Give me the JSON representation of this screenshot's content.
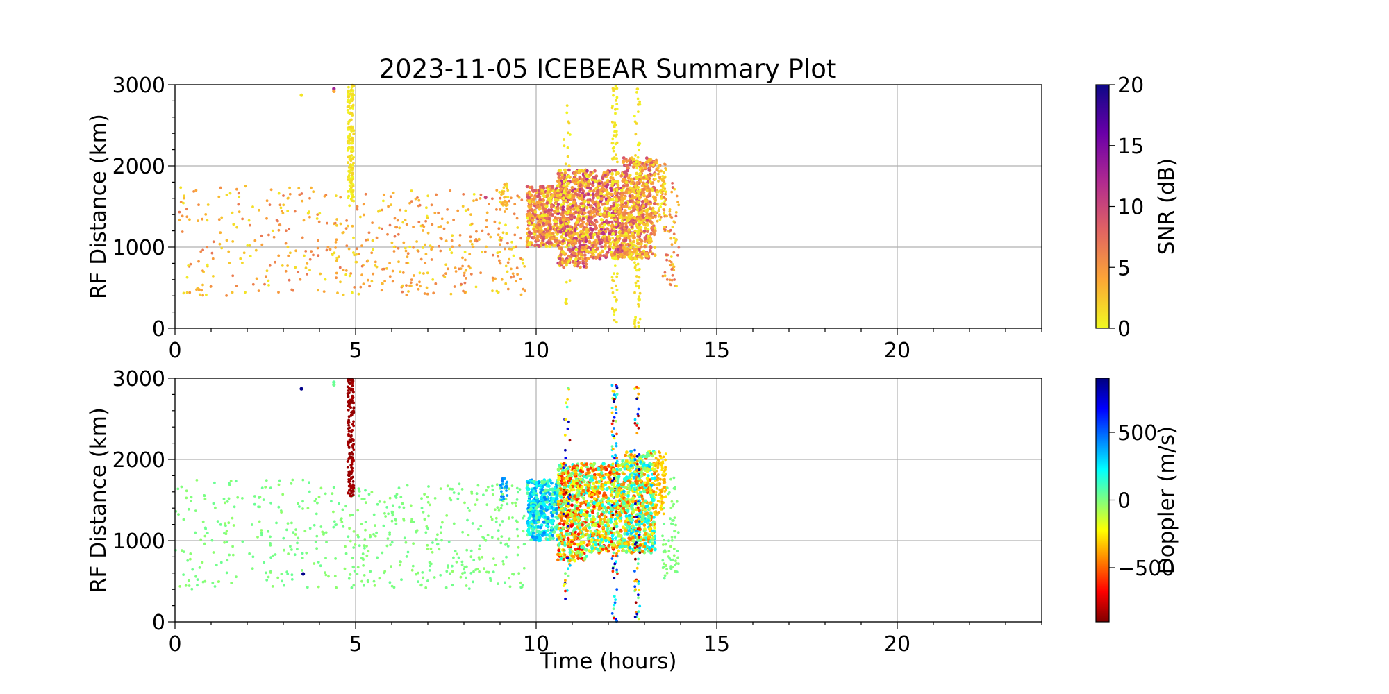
{
  "chart_data": [
    {
      "type": "scatter",
      "title": "2023-11-05 ICEBEAR Summary Plot",
      "xlabel": "",
      "ylabel": "RF Distance (km)",
      "xlim": [
        0,
        24
      ],
      "ylim": [
        0,
        3000
      ],
      "xticks": [
        "0",
        "5",
        "10",
        "15",
        "20"
      ],
      "yticks": [
        "0",
        "1000",
        "2000",
        "3000"
      ],
      "grid": true,
      "color_variable": "SNR",
      "colorbar": {
        "label": "SNR (dB)",
        "range": [
          0,
          20
        ],
        "ticks": [
          "0",
          "5",
          "10",
          "15",
          "20"
        ],
        "colormap": "plasma_r",
        "stops": [
          "#f0f921",
          "#fca636",
          "#e16462",
          "#b12a90",
          "#6a00a8",
          "#0d0887"
        ]
      },
      "clusters": [
        {
          "x": [
            0,
            4.7
          ],
          "y": [
            400,
            1750
          ],
          "count": 210,
          "value": [
            0.5,
            7
          ],
          "size": 3
        },
        {
          "x": [
            4.7,
            9.7
          ],
          "y": [
            400,
            1700
          ],
          "count": 330,
          "value": [
            0.5,
            7
          ],
          "size": 3
        },
        {
          "x": [
            9.0,
            9.2
          ],
          "y": [
            1500,
            1800
          ],
          "count": 25,
          "value": [
            0.5,
            4
          ],
          "size": 3
        },
        {
          "x": [
            4.78,
            4.95
          ],
          "y": [
            1550,
            3000
          ],
          "count": 170,
          "value": [
            0,
            2
          ],
          "size": 3
        },
        {
          "x": [
            9.75,
            10.6
          ],
          "y": [
            1000,
            1750
          ],
          "count": 380,
          "value": [
            0,
            10
          ],
          "size": 4
        },
        {
          "x": [
            10.6,
            11.4
          ],
          "y": [
            750,
            1950
          ],
          "count": 520,
          "value": [
            0,
            12
          ],
          "size": 4
        },
        {
          "x": [
            11.4,
            12.4
          ],
          "y": [
            850,
            1950
          ],
          "count": 520,
          "value": [
            0,
            12
          ],
          "size": 4
        },
        {
          "x": [
            12.4,
            13.3
          ],
          "y": [
            850,
            2100
          ],
          "count": 560,
          "value": [
            0,
            10
          ],
          "size": 4
        },
        {
          "x": [
            13.3,
            13.6
          ],
          "y": [
            1300,
            2100
          ],
          "count": 90,
          "value": [
            0,
            6
          ],
          "size": 3
        },
        {
          "x": [
            13.5,
            13.95
          ],
          "y": [
            500,
            1850
          ],
          "count": 70,
          "value": [
            1,
            8
          ],
          "size": 3
        },
        {
          "x": [
            10.75,
            10.95
          ],
          "y": [
            280,
            2900
          ],
          "count": 50,
          "value": [
            0,
            2
          ],
          "size": 3
        },
        {
          "x": [
            12.1,
            12.25
          ],
          "y": [
            0,
            3000
          ],
          "count": 90,
          "value": [
            0,
            2
          ],
          "size": 3
        },
        {
          "x": [
            12.72,
            12.88
          ],
          "y": [
            0,
            2950
          ],
          "count": 90,
          "value": [
            0,
            2
          ],
          "size": 3
        }
      ],
      "points": [
        {
          "x": 4.4,
          "y": 2950,
          "value": 13
        },
        {
          "x": 4.4,
          "y": 2920,
          "value": 4
        },
        {
          "x": 3.5,
          "y": 2870,
          "value": 1
        },
        {
          "x": 8.6,
          "y": 1610,
          "value": 10
        }
      ]
    },
    {
      "type": "scatter",
      "title": "",
      "xlabel": "Time (hours)",
      "ylabel": "RF Distance (km)",
      "xlim": [
        0,
        24
      ],
      "ylim": [
        0,
        3000
      ],
      "xticks": [
        "0",
        "5",
        "10",
        "15",
        "20"
      ],
      "yticks": [
        "0",
        "1000",
        "2000",
        "3000"
      ],
      "grid": true,
      "color_variable": "Doppler",
      "colorbar": {
        "label": "Doppler (m/s)",
        "range": [
          -900,
          900
        ],
        "ticks": [
          {
            "value": -500,
            "label": "−500"
          },
          {
            "value": 0,
            "label": "0"
          },
          {
            "value": 500,
            "label": "500"
          }
        ],
        "colormap": "jet_r",
        "stops": [
          "#7f0000",
          "#ff0000",
          "#ff7f00",
          "#ffff00",
          "#7fff7f",
          "#00ffff",
          "#007fff",
          "#0000ff",
          "#00007f"
        ]
      },
      "clusters": [
        {
          "x": [
            0,
            4.7
          ],
          "y": [
            400,
            1750
          ],
          "count": 210,
          "value": [
            -40,
            40
          ],
          "size": 3
        },
        {
          "x": [
            4.7,
            9.7
          ],
          "y": [
            400,
            1700
          ],
          "count": 330,
          "value": [
            -40,
            40
          ],
          "size": 3
        },
        {
          "x": [
            9.0,
            9.2
          ],
          "y": [
            1500,
            1800
          ],
          "count": 25,
          "value": [
            350,
            450
          ],
          "size": 3
        },
        {
          "x": [
            4.78,
            4.95
          ],
          "y": [
            1550,
            3000
          ],
          "count": 170,
          "value": [
            -880,
            -820
          ],
          "size": 3
        },
        {
          "x": [
            9.75,
            10.6
          ],
          "y": [
            1000,
            1750
          ],
          "count": 380,
          "value": [
            0,
            450
          ],
          "size": 4
        },
        {
          "x": [
            10.6,
            11.4
          ],
          "y": [
            750,
            1950
          ],
          "count": 520,
          "value": [
            -700,
            200
          ],
          "size": 4
        },
        {
          "x": [
            11.4,
            12.4
          ],
          "y": [
            850,
            1950
          ],
          "count": 520,
          "value": [
            -650,
            250
          ],
          "size": 4
        },
        {
          "x": [
            12.4,
            13.3
          ],
          "y": [
            850,
            2100
          ],
          "count": 560,
          "value": [
            -550,
            350
          ],
          "size": 4
        },
        {
          "x": [
            13.3,
            13.6
          ],
          "y": [
            1300,
            2100
          ],
          "count": 90,
          "value": [
            -400,
            -250
          ],
          "size": 3
        },
        {
          "x": [
            13.5,
            13.95
          ],
          "y": [
            500,
            1850
          ],
          "count": 70,
          "value": [
            -40,
            40
          ],
          "size": 3
        },
        {
          "x": [
            10.75,
            10.95
          ],
          "y": [
            280,
            2900
          ],
          "count": 50,
          "value": [
            -900,
            900
          ],
          "size": 3
        },
        {
          "x": [
            12.1,
            12.25
          ],
          "y": [
            0,
            3000
          ],
          "count": 90,
          "value": [
            -900,
            900
          ],
          "size": 3
        },
        {
          "x": [
            12.72,
            12.88
          ],
          "y": [
            0,
            2950
          ],
          "count": 90,
          "value": [
            -900,
            900
          ],
          "size": 3
        }
      ],
      "points": [
        {
          "x": 4.4,
          "y": 2950,
          "value": 50
        },
        {
          "x": 4.4,
          "y": 2920,
          "value": 30
        },
        {
          "x": 3.5,
          "y": 2870,
          "value": 880
        },
        {
          "x": 3.55,
          "y": 590,
          "value": 880
        }
      ]
    }
  ]
}
